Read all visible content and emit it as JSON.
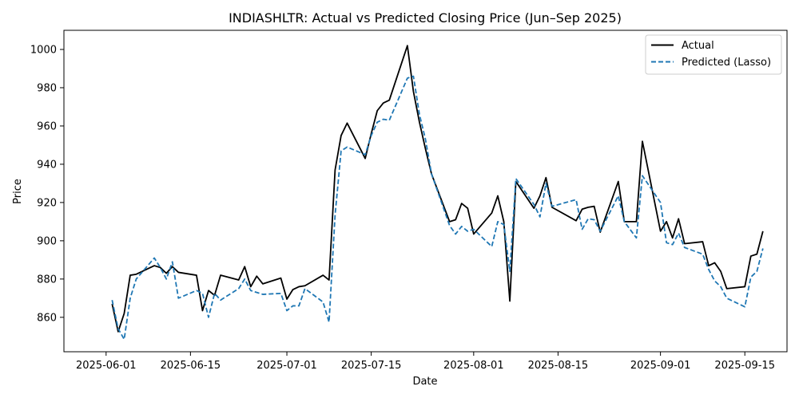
{
  "chart_data": {
    "type": "line",
    "title": "INDIASHLTR: Actual vs Predicted Closing Price (Jun–Sep 2025)",
    "xlabel": "Date",
    "ylabel": "Price",
    "xlim": [
      "2025-05-25",
      "2025-09-22"
    ],
    "ylim": [
      842,
      1010
    ],
    "grid": false,
    "legend_position": "top-right",
    "x_ticks": [
      "2025-06-01",
      "2025-06-15",
      "2025-07-01",
      "2025-07-15",
      "2025-08-01",
      "2025-08-15",
      "2025-09-01",
      "2025-09-15"
    ],
    "y_ticks": [
      860,
      880,
      900,
      920,
      940,
      960,
      980,
      1000
    ],
    "x": [
      "2025-06-02",
      "2025-06-03",
      "2025-06-04",
      "2025-06-05",
      "2025-06-06",
      "2025-06-09",
      "2025-06-10",
      "2025-06-11",
      "2025-06-12",
      "2025-06-13",
      "2025-06-16",
      "2025-06-17",
      "2025-06-18",
      "2025-06-19",
      "2025-06-20",
      "2025-06-23",
      "2025-06-24",
      "2025-06-25",
      "2025-06-26",
      "2025-06-27",
      "2025-06-30",
      "2025-07-01",
      "2025-07-02",
      "2025-07-03",
      "2025-07-04",
      "2025-07-07",
      "2025-07-08",
      "2025-07-09",
      "2025-07-10",
      "2025-07-11",
      "2025-07-14",
      "2025-07-15",
      "2025-07-16",
      "2025-07-17",
      "2025-07-18",
      "2025-07-21",
      "2025-07-22",
      "2025-07-23",
      "2025-07-24",
      "2025-07-25",
      "2025-07-28",
      "2025-07-29",
      "2025-07-30",
      "2025-07-31",
      "2025-08-01",
      "2025-08-04",
      "2025-08-05",
      "2025-08-06",
      "2025-08-07",
      "2025-08-08",
      "2025-08-11",
      "2025-08-12",
      "2025-08-13",
      "2025-08-14",
      "2025-08-18",
      "2025-08-19",
      "2025-08-20",
      "2025-08-21",
      "2025-08-22",
      "2025-08-25",
      "2025-08-26",
      "2025-08-28",
      "2025-08-29",
      "2025-09-01",
      "2025-09-02",
      "2025-09-03",
      "2025-09-04",
      "2025-09-05",
      "2025-09-08",
      "2025-09-09",
      "2025-09-10",
      "2025-09-11",
      "2025-09-12",
      "2025-09-15",
      "2025-09-16",
      "2025-09-17",
      "2025-09-18"
    ],
    "series": [
      {
        "name": "Actual",
        "color": "#000000",
        "dash": "solid",
        "values": [
          867,
          852.5,
          862,
          882,
          882.5,
          887,
          886,
          883,
          886.5,
          883.5,
          882,
          863.5,
          874,
          871.5,
          882,
          879.5,
          886.5,
          876,
          881.5,
          877.5,
          880.5,
          869.5,
          874.5,
          876,
          876.5,
          882,
          879.5,
          937,
          955,
          961.5,
          943,
          956,
          968,
          972,
          973.5,
          1002,
          978,
          962,
          948,
          935,
          910,
          911,
          919.5,
          917,
          903.5,
          914.5,
          923.5,
          910,
          868.5,
          931,
          917,
          923.5,
          933,
          917.5,
          910.5,
          916.5,
          917.5,
          918,
          904.5,
          931,
          910,
          910,
          952,
          905,
          910,
          901.5,
          911.5,
          898.5,
          899.5,
          887,
          888.5,
          884,
          875,
          876,
          892,
          893,
          905
        ]
      },
      {
        "name": "Predicted (Lasso)",
        "color": "#1f77b4",
        "dash": "dashed",
        "values": [
          869,
          854,
          848.5,
          870,
          880,
          891,
          886,
          880,
          889,
          870,
          874,
          872.5,
          860,
          872.5,
          869,
          875,
          880,
          874,
          873,
          872,
          872.5,
          863.5,
          866,
          866,
          875,
          868,
          857.5,
          913.5,
          947,
          949,
          945,
          955,
          962,
          963.5,
          963,
          985,
          986,
          966,
          953,
          935,
          908,
          903.5,
          907.5,
          905,
          906,
          897,
          910,
          908.5,
          884,
          932.5,
          919,
          912.5,
          930,
          918,
          921.5,
          906,
          911.5,
          911,
          905,
          923.5,
          910,
          901.5,
          934,
          920,
          899,
          898,
          904,
          896.5,
          893,
          885,
          879,
          876,
          870,
          865.5,
          881,
          884,
          896
        ]
      }
    ]
  }
}
